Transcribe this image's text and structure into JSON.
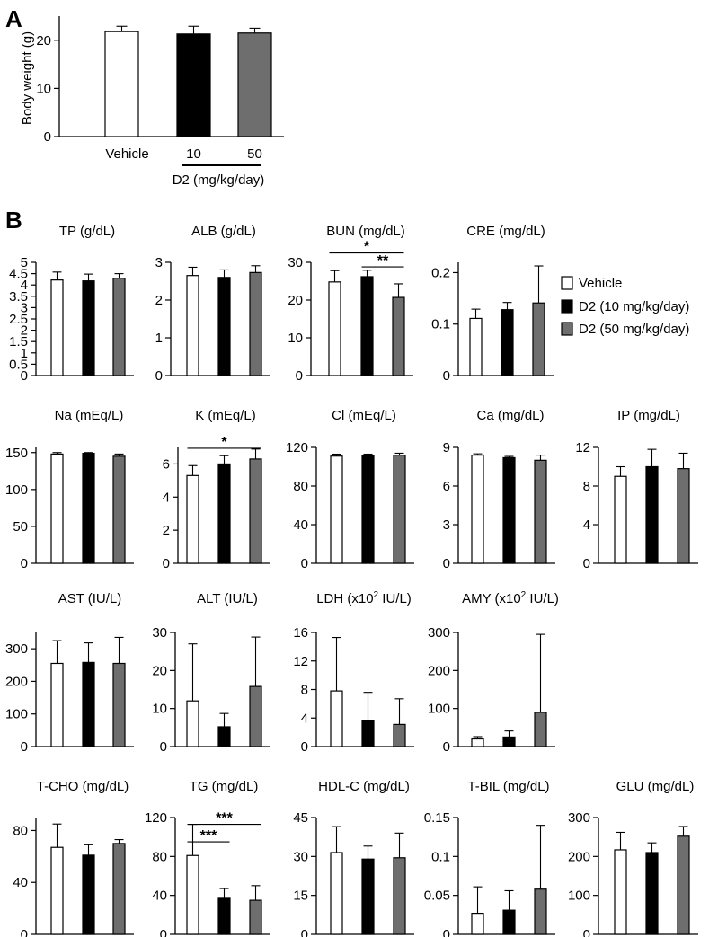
{
  "colors": {
    "vehicle": "#ffffff",
    "d2_10": "#000000",
    "d2_50": "#6e6e6e",
    "axis": "#000000"
  },
  "legend": {
    "items": [
      "Vehicle",
      "D2 (10 mg/kg/day)",
      "D2 (50 mg/kg/day)"
    ]
  },
  "chart_data": [
    {
      "id": "A",
      "type": "bar",
      "panel_label": "A",
      "ylabel": "Body weight (g)",
      "ylim": [
        0,
        25
      ],
      "yticks": [
        "0",
        "10",
        "20"
      ],
      "categories": [
        "Vehicle",
        "10",
        "50"
      ],
      "group_label": "D2 (mg/kg/day)",
      "values": [
        21.8,
        21.3,
        21.5
      ],
      "errors": [
        1.1,
        1.6,
        1.0
      ]
    },
    {
      "id": "TP",
      "panel_label": "B",
      "type": "bar",
      "title": "TP (g/dL)",
      "ylim": [
        0,
        5
      ],
      "yticks": [
        "0",
        "0.5",
        "1",
        "1.5",
        "2",
        "2.5",
        "3",
        "3.5",
        "4",
        "4.5",
        "5"
      ],
      "values": [
        4.22,
        4.18,
        4.3
      ],
      "errors": [
        0.35,
        0.3,
        0.2
      ]
    },
    {
      "id": "ALB",
      "type": "bar",
      "title": "ALB (g/dL)",
      "ylim": [
        0,
        3
      ],
      "yticks": [
        "0",
        "1",
        "2",
        "3"
      ],
      "values": [
        2.65,
        2.6,
        2.73
      ],
      "errors": [
        0.22,
        0.2,
        0.18
      ]
    },
    {
      "id": "BUN",
      "type": "bar",
      "title": "BUN (mg/dL)",
      "ylim": [
        0,
        30
      ],
      "yticks": [
        "0",
        "10",
        "20",
        "30"
      ],
      "values": [
        24.8,
        26.2,
        20.7
      ],
      "errors": [
        3.0,
        1.7,
        3.6
      ],
      "annotations": [
        {
          "text": "*",
          "from": 0,
          "to": 2,
          "level": 32.5
        },
        {
          "text": "**",
          "from": 1,
          "to": 2,
          "level": 28.8
        }
      ]
    },
    {
      "id": "CRE",
      "type": "bar",
      "title": "CRE (mg/dL)",
      "ylim": [
        0,
        0.22
      ],
      "yticks": [
        "0",
        "0.1",
        "0.2"
      ],
      "values": [
        0.111,
        0.128,
        0.141
      ],
      "errors": [
        0.018,
        0.014,
        0.072
      ]
    },
    {
      "id": "Na",
      "type": "bar",
      "title": "Na (mEq/L)",
      "ylim": [
        0,
        157
      ],
      "yticks": [
        "0",
        "50",
        "100",
        "150"
      ],
      "values": [
        148,
        149,
        145
      ],
      "errors": [
        2,
        1,
        3
      ]
    },
    {
      "id": "K",
      "type": "bar",
      "title": "K (mEq/L)",
      "ylim": [
        0,
        7
      ],
      "yticks": [
        "0",
        "2",
        "4",
        "6"
      ],
      "values": [
        5.3,
        6.0,
        6.3
      ],
      "errors": [
        0.6,
        0.5,
        0.6
      ],
      "annotations": [
        {
          "text": "*",
          "from": 0,
          "to": 2,
          "level": 6.95
        }
      ]
    },
    {
      "id": "Cl",
      "type": "bar",
      "title": "Cl (mEq/L)",
      "ylim": [
        0,
        120
      ],
      "yticks": [
        "0",
        "40",
        "80",
        "120"
      ],
      "values": [
        111,
        112,
        112
      ],
      "errors": [
        2,
        1,
        2
      ]
    },
    {
      "id": "Ca",
      "type": "bar",
      "title": "Ca (mg/dL)",
      "ylim": [
        0,
        9
      ],
      "yticks": [
        "0",
        "3",
        "6",
        "9"
      ],
      "values": [
        8.4,
        8.2,
        8.0
      ],
      "errors": [
        0.1,
        0.1,
        0.4
      ]
    },
    {
      "id": "IP",
      "type": "bar",
      "title": "IP (mg/dL)",
      "ylim": [
        0,
        12
      ],
      "yticks": [
        "0",
        "4",
        "8",
        "12"
      ],
      "values": [
        9.0,
        10.0,
        9.8
      ],
      "errors": [
        1.0,
        1.8,
        1.6
      ]
    },
    {
      "id": "AST",
      "type": "bar",
      "title": "AST (IU/L)",
      "ylim": [
        0,
        350
      ],
      "yticks": [
        "0",
        "100",
        "200",
        "300"
      ],
      "values": [
        255,
        258,
        255
      ],
      "errors": [
        70,
        60,
        80
      ]
    },
    {
      "id": "ALT",
      "type": "bar",
      "title": "ALT (IU/L)",
      "ylim": [
        0,
        30
      ],
      "yticks": [
        "0",
        "10",
        "20",
        "30"
      ],
      "values": [
        12.0,
        5.2,
        15.8
      ],
      "errors": [
        15.0,
        3.5,
        13.0
      ]
    },
    {
      "id": "LDH",
      "type": "bar",
      "title": "LDH (x10",
      "title_sup": "2",
      "title_tail": " IU/L)",
      "ylim": [
        0,
        16
      ],
      "yticks": [
        "0",
        "4",
        "8",
        "12",
        "16"
      ],
      "values": [
        7.8,
        3.6,
        3.1
      ],
      "errors": [
        7.5,
        4.0,
        3.6
      ]
    },
    {
      "id": "AMY",
      "type": "bar",
      "title": "AMY (x10",
      "title_sup": "2",
      "title_tail": " IU/L)",
      "ylim": [
        0,
        300
      ],
      "yticks": [
        "0",
        "100",
        "200",
        "300"
      ],
      "values": [
        20,
        25,
        90
      ],
      "errors": [
        6,
        16,
        205
      ]
    },
    {
      "id": "TCHO",
      "type": "bar",
      "title": "T-CHO (mg/dL)",
      "ylim": [
        0,
        90
      ],
      "yticks": [
        "0",
        "40",
        "80"
      ],
      "values": [
        67,
        61,
        70
      ],
      "errors": [
        18,
        8,
        3
      ]
    },
    {
      "id": "TG",
      "type": "bar",
      "title": "TG (mg/dL)",
      "ylim": [
        0,
        120
      ],
      "yticks": [
        "0",
        "40",
        "80",
        "120"
      ],
      "values": [
        81,
        37,
        35
      ],
      "errors": [
        32,
        10,
        15
      ],
      "annotations": [
        {
          "text": "***",
          "from": 0,
          "to": 2,
          "level": 113
        },
        {
          "text": "***",
          "from": 0,
          "to": 1,
          "level": 95
        }
      ]
    },
    {
      "id": "HDLC",
      "type": "bar",
      "title": "HDL-C (mg/dL)",
      "ylim": [
        0,
        45
      ],
      "yticks": [
        "0",
        "15",
        "30",
        "45"
      ],
      "values": [
        31.5,
        29,
        29.5
      ],
      "errors": [
        10,
        5,
        9.5
      ]
    },
    {
      "id": "TBIL",
      "type": "bar",
      "title": "T-BIL (mg/dL)",
      "ylim": [
        0,
        0.15
      ],
      "yticks": [
        "0",
        "0.05",
        "0.1",
        "0.15"
      ],
      "values": [
        0.027,
        0.031,
        0.058
      ],
      "errors": [
        0.034,
        0.025,
        0.082
      ]
    },
    {
      "id": "GLU",
      "type": "bar",
      "title": "GLU (mg/dL)",
      "ylim": [
        0,
        300
      ],
      "yticks": [
        "0",
        "100",
        "200",
        "300"
      ],
      "values": [
        217,
        210,
        252
      ],
      "errors": [
        45,
        25,
        25
      ]
    }
  ]
}
